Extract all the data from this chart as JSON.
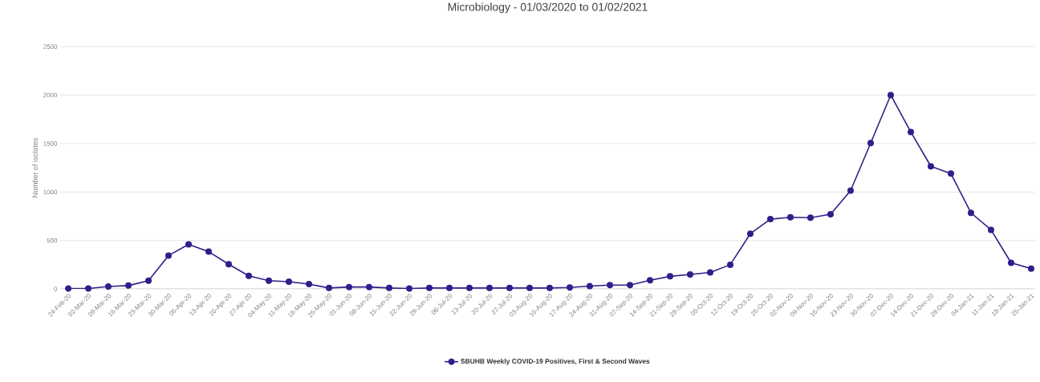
{
  "chart_data": {
    "type": "line",
    "title": "Microbiology - 01/03/2020 to 01/02/2021",
    "ylabel": "Number of isolates",
    "categories": [
      "24-Feb-20",
      "02-Mar-20",
      "09-Mar-20",
      "16-Mar-20",
      "23-Mar-20",
      "30-Mar-20",
      "06-Apr-20",
      "13-Apr-20",
      "20-Apr-20",
      "27-Apr-20",
      "04-May-20",
      "11-May-20",
      "18-May-20",
      "25-May-20",
      "01-Jun-20",
      "08-Jun-20",
      "15-Jun-20",
      "22-Jun-20",
      "29-Jun-20",
      "06-Jul-20",
      "13-Jul-20",
      "20-Jul-20",
      "27-Jul-20",
      "03-Aug-20",
      "10-Aug-20",
      "17-Aug-20",
      "24-Aug-20",
      "31-Aug-20",
      "07-Sep-20",
      "14-Sep-20",
      "21-Sep-20",
      "28-Sep-20",
      "05-Oct-20",
      "12-Oct-20",
      "19-Oct-20",
      "26-Oct-20",
      "02-Nov-20",
      "09-Nov-20",
      "16-Nov-20",
      "23-Nov-20",
      "30-Nov-20",
      "07-Dec-20",
      "14-Dec-20",
      "21-Dec-20",
      "28-Dec-20",
      "04-Jan-21",
      "11-Jan-21",
      "18-Jan-21",
      "25-Jan-21"
    ],
    "series": [
      {
        "name": "SBUHB Weekly COVID-19 Positives, First & Second Waves",
        "color": "#2e1f8a",
        "values": [
          5,
          5,
          25,
          35,
          85,
          345,
          460,
          385,
          255,
          135,
          85,
          75,
          50,
          10,
          20,
          20,
          10,
          5,
          10,
          10,
          10,
          10,
          10,
          10,
          10,
          15,
          30,
          40,
          40,
          90,
          130,
          150,
          170,
          250,
          570,
          720,
          740,
          735,
          770,
          1015,
          1505,
          2000,
          1620,
          1265,
          1190,
          785,
          610,
          270,
          210
        ]
      }
    ],
    "ylim": [
      0,
      2500
    ],
    "yticks": [
      0,
      500,
      1000,
      1500,
      2000,
      2500
    ],
    "grid": "y",
    "legend": "bottom",
    "marker": "circle",
    "line_style": "solid"
  }
}
